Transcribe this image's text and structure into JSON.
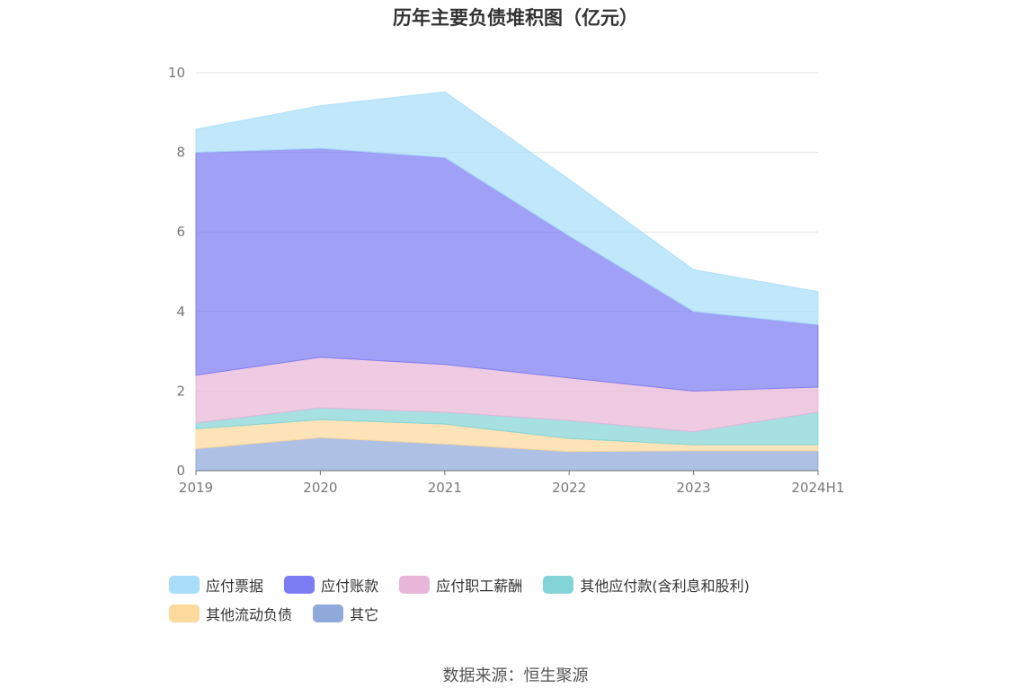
{
  "chart_data": {
    "type": "area",
    "stacked": true,
    "title": "历年主要负债堆积图（亿元）",
    "categories": [
      "2019",
      "2020",
      "2021",
      "2022",
      "2023",
      "2024H1"
    ],
    "y_ticks": [
      "0",
      "2",
      "4",
      "6",
      "8",
      "10"
    ],
    "ylim": [
      0,
      10
    ],
    "grid": true,
    "legend_position": "bottom",
    "series": [
      {
        "name": "其它",
        "color": "#8fa9db",
        "values": [
          0.55,
          0.83,
          0.67,
          0.48,
          0.5,
          0.5
        ]
      },
      {
        "name": "其他流动负债",
        "color": "#fcd99c",
        "values": [
          0.5,
          0.45,
          0.5,
          0.33,
          0.15,
          0.15
        ]
      },
      {
        "name": "其他应付款(含利息和股利)",
        "color": "#83d4d6",
        "values": [
          0.15,
          0.3,
          0.3,
          0.45,
          0.33,
          0.82
        ]
      },
      {
        "name": "应付职工薪酬",
        "color": "#e8b6d8",
        "values": [
          1.2,
          1.27,
          1.2,
          1.07,
          1.02,
          0.63
        ]
      },
      {
        "name": "应付账款",
        "color": "#7b7bf2",
        "values": [
          5.6,
          5.25,
          5.2,
          3.57,
          2.0,
          1.57
        ]
      },
      {
        "name": "应付票据",
        "color": "#a8def8",
        "values": [
          0.58,
          1.07,
          1.65,
          1.42,
          1.05,
          0.83
        ]
      }
    ]
  },
  "legend": {
    "items": [
      {
        "label": "应付票据",
        "color": "#a8def8"
      },
      {
        "label": "应付账款",
        "color": "#7b7bf2"
      },
      {
        "label": "应付职工薪酬",
        "color": "#e8b6d8"
      },
      {
        "label": "其他应付款(含利息和股利)",
        "color": "#83d4d6"
      },
      {
        "label": "其他流动负债",
        "color": "#fcd99c"
      },
      {
        "label": "其它",
        "color": "#8fa9db"
      }
    ]
  },
  "source": "数据来源：恒生聚源"
}
